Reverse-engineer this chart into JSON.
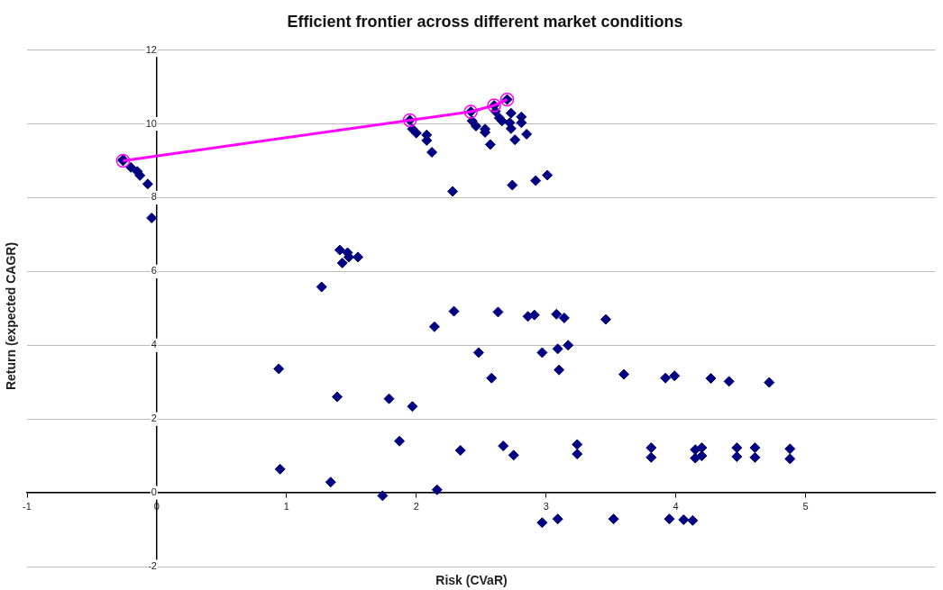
{
  "chart_data": {
    "type": "scatter",
    "title": "Efficient frontier across different market conditions",
    "xlabel": "Risk (CVaR)",
    "ylabel": "Return (expected CAGR)",
    "xlim": [
      -1,
      6
    ],
    "xticks": [
      -1,
      0,
      1,
      2,
      3,
      4,
      5
    ],
    "ylim": [
      -2,
      12
    ],
    "yticks": [
      -2,
      0,
      2,
      4,
      6,
      8,
      10,
      12
    ],
    "grid": "y",
    "legend": false,
    "series": [
      {
        "marker": "diamond",
        "color": "#000080",
        "x": [
          -0.26,
          -0.2,
          -0.15,
          -0.13,
          -0.07,
          -0.04,
          1.97,
          2.0,
          2.08,
          2.08,
          2.12,
          2.28,
          2.43,
          2.46,
          2.53,
          2.53,
          2.57,
          2.61,
          2.64,
          2.66,
          2.73,
          2.72,
          2.73,
          2.76,
          2.81,
          2.81,
          2.85,
          2.74,
          2.92,
          3.01,
          1.41,
          1.47,
          1.43,
          1.48,
          1.55,
          1.27,
          0.94,
          0.95,
          1.39,
          1.34,
          1.79,
          1.74,
          1.97,
          1.87,
          2.16,
          2.14,
          2.29,
          2.34,
          2.48,
          2.58,
          2.63,
          2.67,
          2.75,
          2.86,
          2.91,
          2.97,
          3.08,
          3.14,
          3.46,
          3.09,
          3.17,
          3.1,
          3.6,
          3.92,
          3.99,
          4.27,
          4.41,
          4.72,
          3.24,
          3.24,
          3.81,
          3.81,
          4.15,
          4.15,
          4.2,
          4.2,
          4.47,
          4.47,
          4.61,
          4.61,
          4.88,
          4.88,
          2.97,
          3.09,
          3.52,
          3.95,
          4.06,
          4.13,
          -0.26,
          1.95,
          2.42,
          2.6,
          2.7
        ],
        "values": [
          9.03,
          8.82,
          8.71,
          8.6,
          8.37,
          7.45,
          9.86,
          9.75,
          9.7,
          9.55,
          9.23,
          8.17,
          10.08,
          9.94,
          9.86,
          9.77,
          9.44,
          10.34,
          10.16,
          10.08,
          10.29,
          10.03,
          9.87,
          9.57,
          10.19,
          10.03,
          9.72,
          8.34,
          8.46,
          8.61,
          6.58,
          6.51,
          6.23,
          6.39,
          6.39,
          5.58,
          3.36,
          0.64,
          2.6,
          0.29,
          2.55,
          -0.08,
          2.34,
          1.4,
          0.08,
          4.5,
          4.92,
          1.15,
          3.8,
          3.11,
          4.9,
          1.27,
          1.02,
          4.78,
          4.82,
          3.8,
          4.84,
          4.74,
          4.7,
          3.9,
          4.0,
          3.33,
          3.21,
          3.11,
          3.17,
          3.1,
          3.02,
          2.99,
          1.31,
          1.05,
          1.22,
          0.96,
          1.17,
          0.94,
          1.22,
          1.0,
          1.22,
          0.98,
          1.22,
          0.96,
          1.19,
          0.92,
          -0.81,
          -0.71,
          -0.71,
          -0.71,
          -0.73,
          -0.75,
          9.0,
          10.1,
          10.33,
          10.5,
          10.66
        ]
      },
      {
        "type": "line",
        "marker": "circle",
        "line_style": "solid",
        "color": "#ff00ff",
        "x": [
          -0.26,
          1.95,
          2.42,
          2.6,
          2.7
        ],
        "values": [
          9.0,
          10.1,
          10.33,
          10.5,
          10.66
        ]
      }
    ]
  }
}
